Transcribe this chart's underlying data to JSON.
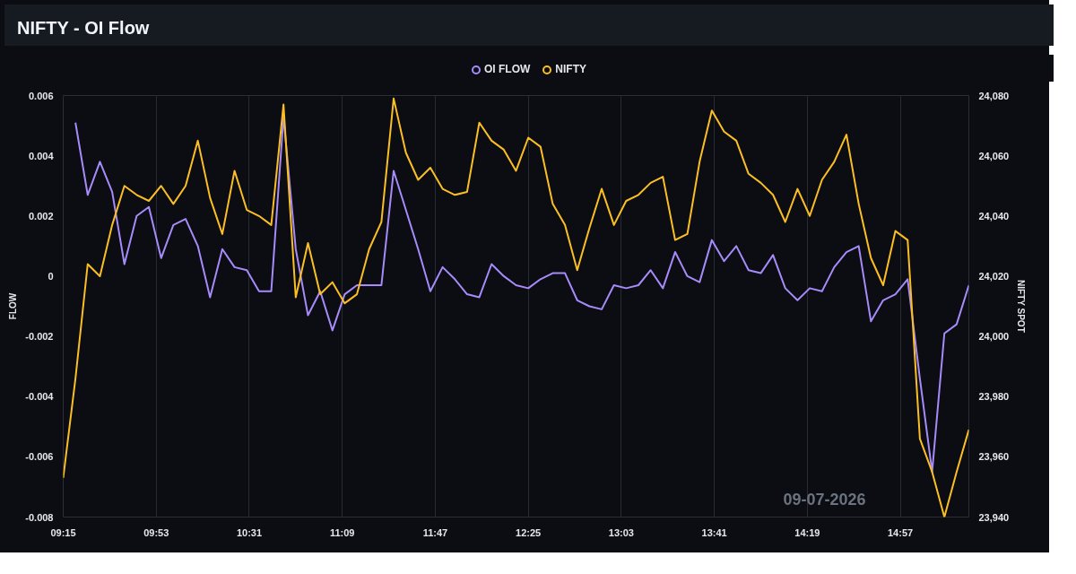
{
  "chart_data": {
    "type": "line",
    "title": "NIFTY - OI Flow",
    "xlabel": null,
    "ylabel": "FLOW",
    "y2label": "NIFTY SPOT",
    "x": [
      9.25,
      9.3333,
      9.4167,
      9.5,
      9.5833,
      9.6667,
      9.75,
      9.8333,
      9.9167,
      10,
      10.0833,
      10.1667,
      10.25,
      10.3333,
      10.4167,
      10.5,
      10.5833,
      10.6667,
      10.75,
      10.8333,
      10.9167,
      11,
      11.0833,
      11.1667,
      11.25,
      11.3333,
      11.4167,
      11.5,
      11.5833,
      11.6667,
      11.75,
      11.8333,
      11.9167,
      12,
      12.0833,
      12.1667,
      12.25,
      12.3333,
      12.4167,
      12.5,
      12.5833,
      12.6667,
      12.75,
      12.8333,
      12.9167,
      13,
      13.0833,
      13.1667,
      13.25,
      13.3333,
      13.4167,
      13.5,
      13.5833,
      13.6667,
      13.75,
      13.8333,
      13.9167,
      14,
      14.0833,
      14.1667,
      14.25,
      14.3333,
      14.4167,
      14.5,
      14.5833,
      14.6667,
      14.75,
      14.8333,
      14.9167,
      15,
      15.0833,
      15.1667,
      15.25,
      15.3333,
      15.4167
    ],
    "series": [
      {
        "name": "OI FLOW",
        "color": "#a78bfa",
        "axis": "y",
        "values": [
          null,
          0.0051,
          0.0027,
          0.0038,
          0.0028,
          0.0004,
          0.002,
          0.0023,
          0.0006,
          0.0017,
          0.0019,
          0.001,
          -0.0007,
          0.0009,
          0.0003,
          0.0002,
          -0.0005,
          -0.0005,
          0.0053,
          0.0009,
          -0.0013,
          -0.0005,
          -0.0018,
          -0.0006,
          -0.0003,
          -0.0003,
          -0.0003,
          0.0035,
          0.0022,
          0.0009,
          -0.0005,
          0.0003,
          -0.0001,
          -0.0006,
          -0.0007,
          0.0004,
          0,
          -0.0003,
          -0.0004,
          -0.0001,
          0.0001,
          0.0001,
          -0.0008,
          -0.001,
          -0.0011,
          -0.0003,
          -0.0004,
          -0.0003,
          0.0002,
          -0.0004,
          0.0008,
          0,
          -0.0002,
          0.0012,
          0.0005,
          0.001,
          0.0002,
          0.0001,
          0.0007,
          -0.0004,
          -0.0008,
          -0.0004,
          -0.0005,
          0.0003,
          0.0008,
          0.001,
          -0.0015,
          -0.0008,
          -0.0006,
          -0.0001,
          -0.0034,
          -0.0065,
          -0.0019,
          -0.0016,
          -0.0003
        ]
      },
      {
        "name": "NIFTY",
        "color": "#fbbf24",
        "axis": "y2",
        "values": [
          23953,
          23986,
          24024,
          24020,
          24037,
          24050,
          24047,
          24045,
          24050,
          24044,
          24050,
          24065,
          24046,
          24034,
          24055,
          24042,
          24040,
          24037,
          24077,
          24013,
          24031,
          24014,
          24018,
          24011,
          24014,
          24029,
          24038,
          24079,
          24061,
          24052,
          24056,
          24049,
          24047,
          24048,
          24071,
          24065,
          24062,
          24055,
          24066,
          24063,
          24044,
          24037,
          24022,
          24036,
          24049,
          24037,
          24045,
          24047,
          24051,
          24053,
          24032,
          24034,
          24058,
          24075,
          24068,
          24065,
          24054,
          24051,
          24047,
          24038,
          24049,
          24040,
          24052,
          24058,
          24067,
          24044,
          24026,
          24017,
          24035,
          24032,
          23966,
          23955,
          23940,
          23955,
          23969
        ]
      }
    ],
    "xlim": [
      9.25,
      15.4167
    ],
    "xticks": [
      {
        "value": 9.25,
        "label": "09:15"
      },
      {
        "value": 9.8833,
        "label": "09:53"
      },
      {
        "value": 10.5167,
        "label": "10:31"
      },
      {
        "value": 11.15,
        "label": "11:09"
      },
      {
        "value": 11.7833,
        "label": "11:47"
      },
      {
        "value": 12.4167,
        "label": "12:25"
      },
      {
        "value": 13.05,
        "label": "13:03"
      },
      {
        "value": 13.6833,
        "label": "13:41"
      },
      {
        "value": 14.3167,
        "label": "14:19"
      },
      {
        "value": 14.95,
        "label": "14:57"
      }
    ],
    "ylim": [
      -0.008,
      0.006
    ],
    "yticks": [
      -0.008,
      -0.006,
      -0.004,
      -0.002,
      0,
      0.002,
      0.004,
      0.006
    ],
    "y2lim": [
      23940,
      24080
    ],
    "y2ticks": [
      {
        "value": 23940,
        "label": "23,940"
      },
      {
        "value": 23960,
        "label": "23,960"
      },
      {
        "value": 23980,
        "label": "23,980"
      },
      {
        "value": 24000,
        "label": "24,000"
      },
      {
        "value": 24020,
        "label": "24,020"
      },
      {
        "value": 24040,
        "label": "24,040"
      },
      {
        "value": 24060,
        "label": "24,060"
      },
      {
        "value": 24080,
        "label": "24,080"
      }
    ],
    "grid": "x",
    "legend": "top",
    "marker": "none",
    "line_style": "solid",
    "annotations": [
      "09-07-2026"
    ]
  }
}
